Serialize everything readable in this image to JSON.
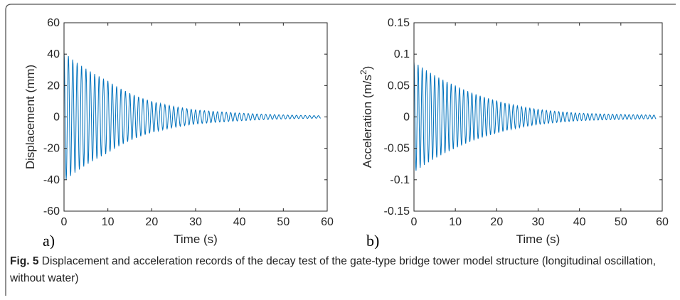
{
  "caption": {
    "fig_label": "Fig. 5",
    "text": "Displacement and acceleration records of the decay test of the gate-type bridge tower model structure (longitudinal oscillation, without water)"
  },
  "chart_data": [
    {
      "panel_label": "a)",
      "type": "line",
      "title": "",
      "xlabel": "Time (s)",
      "ylabel": "Displacement (mm)",
      "xlim": [
        0,
        60
      ],
      "ylim": [
        -60,
        60
      ],
      "xticks": [
        "0",
        "10",
        "20",
        "30",
        "40",
        "50",
        "60"
      ],
      "yticks": [
        "60",
        "40",
        "20",
        "0",
        "-20",
        "-40",
        "-60"
      ],
      "grid": false,
      "color": "#0072BD",
      "signal": {
        "description_type": "damped_oscillation",
        "t_start": 0,
        "t_end": 58.5,
        "initial_amplitude": 41,
        "final_amplitude": 0.8,
        "period_s": 1.0,
        "samples": [
          {
            "t": 0,
            "amp": 41
          },
          {
            "t": 10,
            "amp": 23
          },
          {
            "t": 20,
            "amp": 10
          },
          {
            "t": 30,
            "amp": 4.5
          },
          {
            "t": 40,
            "amp": 2.5
          },
          {
            "t": 50,
            "amp": 1.3
          },
          {
            "t": 58.5,
            "amp": 0.8
          }
        ]
      }
    },
    {
      "panel_label": "b)",
      "type": "line",
      "title": "",
      "xlabel": "Time (s)",
      "ylabel": "Acceleration (m/s",
      "ylabel_sup": "2",
      "ylabel_end": ")",
      "xlim": [
        0,
        60
      ],
      "ylim": [
        -0.15,
        0.15
      ],
      "xticks": [
        "0",
        "10",
        "20",
        "30",
        "40",
        "50",
        "60"
      ],
      "yticks": [
        "0.15",
        "0.1",
        "0.05",
        "0",
        "-0.05",
        "-0.1",
        "-0.15"
      ],
      "grid": false,
      "color": "#0072BD",
      "signal": {
        "description_type": "damped_oscillation",
        "t_start": 0,
        "t_end": 58.5,
        "initial_amplitude": 0.088,
        "final_amplitude": 0.003,
        "period_s": 1.0,
        "samples": [
          {
            "t": 0,
            "amp": 0.088
          },
          {
            "t": 10,
            "amp": 0.05
          },
          {
            "t": 20,
            "amp": 0.026
          },
          {
            "t": 30,
            "amp": 0.012
          },
          {
            "t": 40,
            "amp": 0.006
          },
          {
            "t": 50,
            "amp": 0.004
          },
          {
            "t": 58.5,
            "amp": 0.003
          }
        ]
      }
    }
  ]
}
